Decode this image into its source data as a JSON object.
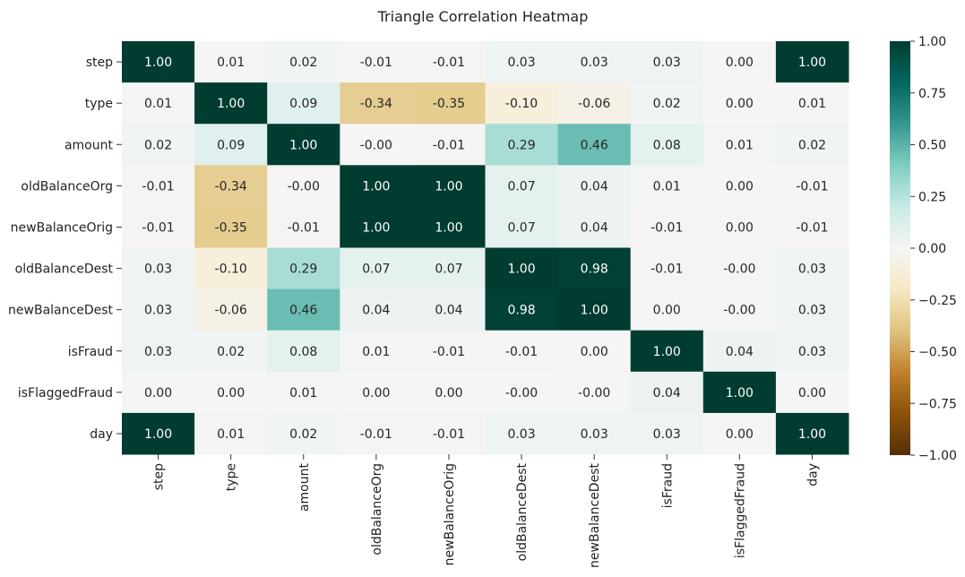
{
  "chart_data": {
    "type": "heatmap",
    "title": "Triangle Correlation Heatmap",
    "rows": [
      "step",
      "type",
      "amount",
      "oldBalanceOrg",
      "newBalanceOrig",
      "oldBalanceDest",
      "newBalanceDest",
      "isFraud",
      "isFlaggedFraud",
      "day"
    ],
    "columns": [
      "step",
      "type",
      "amount",
      "oldBalanceOrg",
      "newBalanceOrig",
      "oldBalanceDest",
      "newBalanceDest",
      "isFraud",
      "isFlaggedFraud",
      "day"
    ],
    "values": [
      [
        1.0,
        0.01,
        0.02,
        -0.01,
        -0.01,
        0.03,
        0.03,
        0.03,
        0.0,
        1.0
      ],
      [
        0.01,
        1.0,
        0.09,
        -0.34,
        -0.35,
        -0.1,
        -0.06,
        0.02,
        0.0,
        0.01
      ],
      [
        0.02,
        0.09,
        1.0,
        -0.0,
        -0.01,
        0.29,
        0.46,
        0.08,
        0.01,
        0.02
      ],
      [
        -0.01,
        -0.34,
        -0.0,
        1.0,
        1.0,
        0.07,
        0.04,
        0.01,
        0.0,
        -0.01
      ],
      [
        -0.01,
        -0.35,
        -0.01,
        1.0,
        1.0,
        0.07,
        0.04,
        -0.01,
        0.0,
        -0.01
      ],
      [
        0.03,
        -0.1,
        0.29,
        0.07,
        0.07,
        1.0,
        0.98,
        -0.01,
        -0.0,
        0.03
      ],
      [
        0.03,
        -0.06,
        0.46,
        0.04,
        0.04,
        0.98,
        1.0,
        0.0,
        -0.0,
        0.03
      ],
      [
        0.03,
        0.02,
        0.08,
        0.01,
        -0.01,
        -0.01,
        0.0,
        1.0,
        0.04,
        0.03
      ],
      [
        0.0,
        0.0,
        0.01,
        0.0,
        0.0,
        -0.0,
        -0.0,
        0.04,
        1.0,
        0.0
      ],
      [
        1.0,
        0.01,
        0.02,
        -0.01,
        -0.01,
        0.03,
        0.03,
        0.03,
        0.0,
        1.0
      ]
    ],
    "value_format": "2dp",
    "colormap": "BrBG",
    "vmin": -1.0,
    "vmax": 1.0,
    "colorbar": {
      "ticks": [
        "1.00",
        "0.75",
        "0.50",
        "0.25",
        "0.00",
        "−0.25",
        "−0.50",
        "−0.75",
        "−1.00"
      ],
      "tick_values": [
        1.0,
        0.75,
        0.5,
        0.25,
        0.0,
        -0.25,
        -0.5,
        -0.75,
        -1.0
      ]
    }
  }
}
